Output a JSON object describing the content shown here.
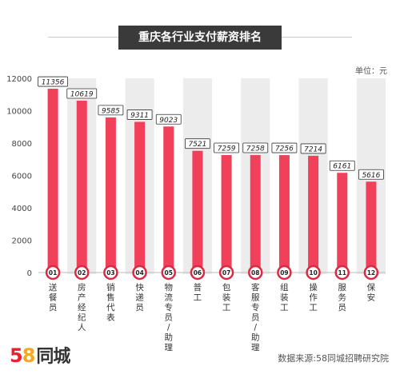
{
  "title": "重庆各行业支付薪资排名",
  "unit_label": "单位：元",
  "source": "数据来源:58同城招聘研究院",
  "logo": {
    "digit1": "5",
    "digit2": "8",
    "text": "同城"
  },
  "colors": {
    "bar": "#f2405a",
    "bar_dark": "#d92a44",
    "stripe": "#ececec",
    "label_border": "#333333"
  },
  "chart_data": {
    "type": "bar",
    "categories": [
      "送餐员",
      "房产经纪人",
      "销售代表",
      "快递员",
      "物流专员/助理",
      "普工",
      "包装工",
      "客服专员/助理",
      "组装工",
      "操作工",
      "服务员",
      "保安"
    ],
    "ranks": [
      "01",
      "02",
      "03",
      "04",
      "05",
      "06",
      "07",
      "08",
      "09",
      "10",
      "11",
      "12"
    ],
    "values": [
      11356,
      10619,
      9585,
      9311,
      9023,
      7521,
      7259,
      7258,
      7256,
      7214,
      6161,
      5616
    ],
    "yticks": [
      0,
      2000,
      4000,
      6000,
      8000,
      10000,
      12000
    ],
    "ylim": [
      0,
      12000
    ],
    "title": "重庆各行业支付薪资排名",
    "ylabel": "",
    "xlabel": ""
  }
}
